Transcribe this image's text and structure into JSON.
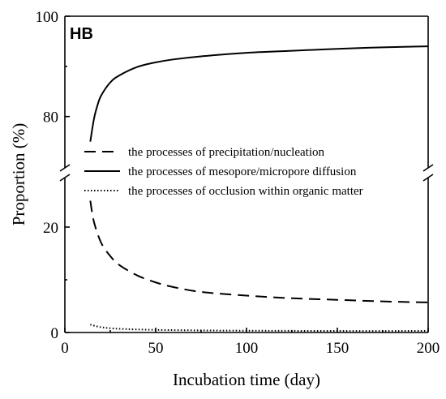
{
  "chart_data": {
    "type": "line",
    "panel_label": "HB",
    "xlabel": "Incubation time (day)",
    "ylabel": "Proportion (%)",
    "xlim": [
      0,
      200
    ],
    "ylim": [
      0,
      100
    ],
    "y_axis_break": {
      "lower_range": [
        0,
        30
      ],
      "upper_range": [
        73,
        100
      ]
    },
    "xticks": [
      "0",
      "50",
      "100",
      "150",
      "200"
    ],
    "yticks_lower": [
      "0",
      "20"
    ],
    "yticks_upper": [
      "80",
      "100"
    ],
    "grid": false,
    "legend_position": "center-right",
    "series": [
      {
        "name": "the processes of precipitation/nucleation",
        "style": "dashed",
        "x": [
          14,
          16,
          20,
          25,
          30,
          40,
          50,
          60,
          75,
          100,
          125,
          150,
          175,
          200
        ],
        "y": [
          25.0,
          21.0,
          17.0,
          14.5,
          12.8,
          10.8,
          9.5,
          8.6,
          7.7,
          7.0,
          6.5,
          6.2,
          5.9,
          5.7
        ]
      },
      {
        "name": "the processes of mesopore/micropore diffusion",
        "style": "solid",
        "x": [
          14,
          16,
          18,
          20,
          25,
          30,
          40,
          50,
          60,
          75,
          100,
          125,
          150,
          175,
          200
        ],
        "y": [
          75.0,
          79.5,
          82.3,
          84.2,
          86.8,
          88.2,
          89.9,
          90.8,
          91.4,
          92.0,
          92.7,
          93.1,
          93.5,
          93.8,
          94.0
        ]
      },
      {
        "name": "the processes of occlusion within organic matter",
        "style": "dotted",
        "x": [
          14,
          20,
          30,
          50,
          75,
          100,
          150,
          200
        ],
        "y": [
          1.5,
          1.0,
          0.7,
          0.5,
          0.4,
          0.35,
          0.3,
          0.3
        ]
      }
    ]
  },
  "colors": {
    "line": "#000000",
    "background": "#ffffff"
  }
}
